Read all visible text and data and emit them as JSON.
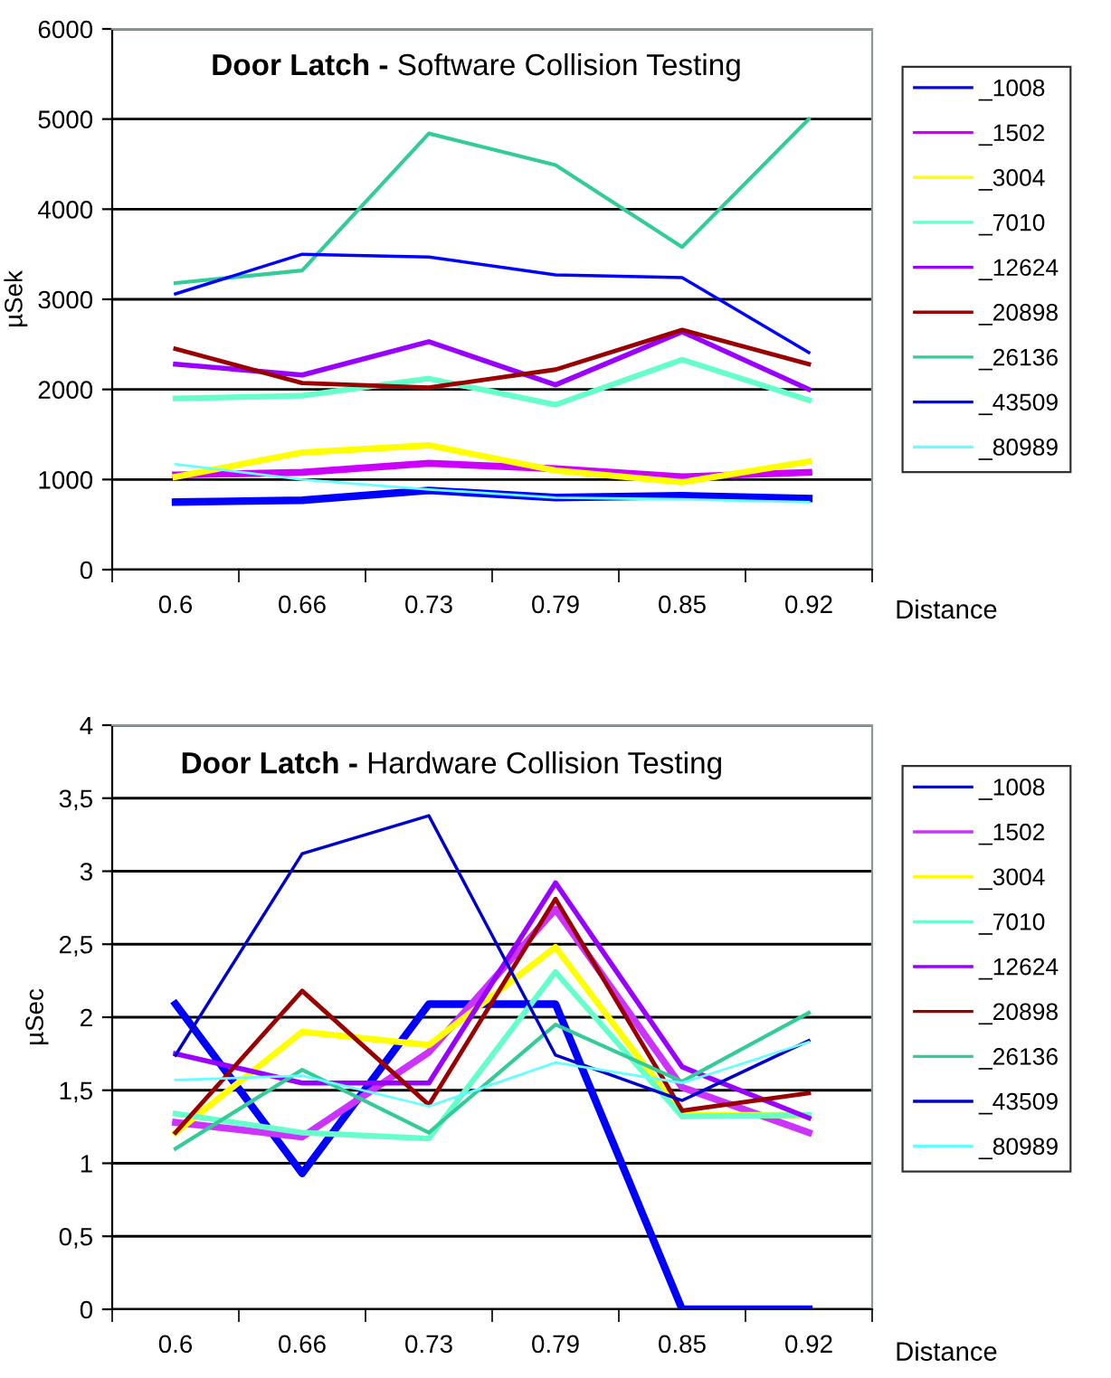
{
  "chart_data": [
    {
      "type": "line",
      "title": "Door Latch -",
      "subtitle": "Software Collision Testing",
      "xlabel": "Distance",
      "ylabel": "µSek",
      "categories": [
        "0.6",
        "0.66",
        "0.73",
        "0.79",
        "0.85",
        "0.92"
      ],
      "ylim": [
        0,
        6000
      ],
      "yticks": [
        0,
        1000,
        2000,
        3000,
        4000,
        5000,
        6000
      ],
      "grid": "y",
      "legend": "right",
      "marker": "none",
      "line_style": "solid",
      "series": [
        {
          "name": "_1008",
          "color": "#0000ff",
          "values": [
            750,
            770,
            880,
            800,
            820,
            790
          ]
        },
        {
          "name": "_1502",
          "color": "#cc00ff",
          "values": [
            1050,
            1080,
            1180,
            1120,
            1030,
            1080
          ]
        },
        {
          "name": "_3004",
          "color": "#ffff00",
          "values": [
            1030,
            1300,
            1380,
            1100,
            970,
            1200
          ]
        },
        {
          "name": "_7010",
          "color": "#66ffcc",
          "values": [
            1900,
            1930,
            2120,
            1830,
            2330,
            1880
          ]
        },
        {
          "name": "_12624",
          "color": "#9900ff",
          "values": [
            2280,
            2160,
            2530,
            2050,
            2640,
            2000
          ]
        },
        {
          "name": "_20898",
          "color": "#990000",
          "values": [
            2450,
            2070,
            2020,
            2220,
            2660,
            2280
          ]
        },
        {
          "name": "_26136",
          "color": "#33cc99",
          "values": [
            3180,
            3320,
            4840,
            4490,
            3580,
            5000
          ]
        },
        {
          "name": "_43509",
          "color": "#0000ff",
          "values": [
            3060,
            3500,
            3470,
            3270,
            3240,
            2410
          ]
        },
        {
          "name": "_80989",
          "color": "#66ffff",
          "values": [
            1170,
            1000,
            890,
            800,
            780,
            750
          ]
        }
      ]
    },
    {
      "type": "line",
      "title": "Door Latch -",
      "subtitle": "Hardware Collision Testing",
      "xlabel": "Distance",
      "ylabel": "µSec",
      "categories": [
        "0.6",
        "0.66",
        "0.73",
        "0.79",
        "0.85",
        "0.92"
      ],
      "ylim": [
        0,
        4
      ],
      "yticks": [
        0,
        {
          "value": 0.5,
          "label": "0,5"
        },
        1,
        {
          "value": 1.5,
          "label": "1,5"
        },
        2,
        {
          "value": 2.5,
          "label": "2,5"
        },
        3,
        {
          "value": 3.5,
          "label": "3,5"
        },
        4
      ],
      "grid": "y",
      "legend": "right",
      "marker": "none",
      "line_style": "solid",
      "series": [
        {
          "name": "_1008",
          "color": "#0000ff",
          "values": [
            2.09,
            0.93,
            2.09,
            2.09,
            0,
            0
          ]
        },
        {
          "name": "_1502",
          "color": "#cc33ff",
          "values": [
            1.28,
            1.18,
            1.76,
            2.74,
            1.52,
            1.21
          ]
        },
        {
          "name": "_3004",
          "color": "#ffff00",
          "values": [
            1.21,
            1.9,
            1.81,
            2.48,
            1.33,
            1.33
          ]
        },
        {
          "name": "_7010",
          "color": "#66ffcc",
          "values": [
            1.34,
            1.21,
            1.17,
            2.31,
            1.32,
            1.33
          ]
        },
        {
          "name": "_12624",
          "color": "#9900ff",
          "values": [
            1.75,
            1.55,
            1.55,
            2.92,
            1.66,
            1.31
          ]
        },
        {
          "name": "_20898",
          "color": "#990000",
          "values": [
            1.21,
            2.18,
            1.4,
            2.81,
            1.36,
            1.48
          ]
        },
        {
          "name": "_26136",
          "color": "#33cc99",
          "values": [
            1.1,
            1.64,
            1.21,
            1.95,
            1.56,
            2.03
          ]
        },
        {
          "name": "_43509",
          "color": "#0000cc",
          "values": [
            1.74,
            3.12,
            3.38,
            1.74,
            1.43,
            1.84
          ]
        },
        {
          "name": "_80989",
          "color": "#66ffff",
          "values": [
            1.57,
            1.6,
            1.39,
            1.69,
            1.55,
            1.83
          ]
        }
      ]
    }
  ]
}
